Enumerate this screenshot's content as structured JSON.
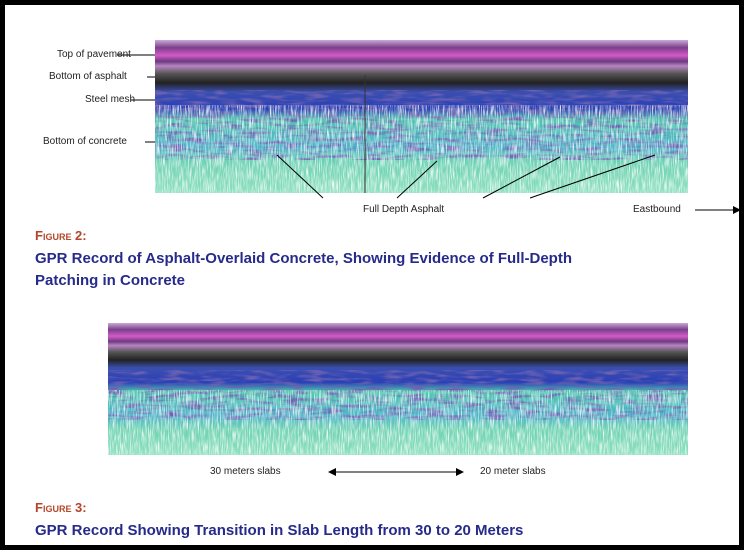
{
  "figure2": {
    "layer_labels": [
      "Top of pavement",
      "Bottom of asphalt",
      "Steel mesh",
      "Bottom of concrete"
    ],
    "annotations": [
      "Full Depth Asphalt",
      "Eastbound"
    ],
    "figure_label": "Figure 2:",
    "caption_lines": [
      "GPR Record of Asphalt-Overlaid Concrete, Showing Evidence of Full-Depth",
      "Patching in Concrete"
    ]
  },
  "figure3": {
    "annotations": [
      "30 meters slabs",
      "20 meter slabs"
    ],
    "figure_label": "Figure 3:",
    "caption_lines": [
      "GPR Record Showing Transition in Slab Length from 30 to 20 Meters"
    ]
  }
}
